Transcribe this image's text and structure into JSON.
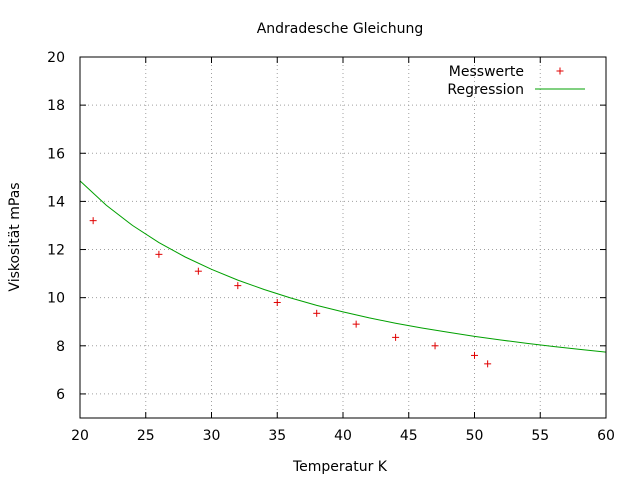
{
  "chart_data": {
    "type": "scatter",
    "title": "Andradesche Gleichung",
    "xlabel": "Temperatur K",
    "ylabel": "Viskosität mPas",
    "xlim": [
      20,
      60
    ],
    "ylim": [
      5,
      20
    ],
    "x_ticks": [
      20,
      25,
      30,
      35,
      40,
      45,
      50,
      55,
      60
    ],
    "y_ticks": [
      6,
      8,
      10,
      12,
      14,
      16,
      18,
      20
    ],
    "grid": true,
    "legend_position": "top-right",
    "series": [
      {
        "name": "Messwerte",
        "kind": "points",
        "marker": "plus",
        "color": "#e00000",
        "x": [
          21,
          26,
          29,
          32,
          35,
          38,
          41,
          44,
          47,
          50,
          51
        ],
        "y": [
          13.2,
          11.8,
          11.1,
          10.5,
          9.8,
          9.35,
          8.9,
          8.35,
          8.0,
          7.6,
          7.25
        ]
      },
      {
        "name": "Regression",
        "kind": "line",
        "color": "#00a000",
        "x": [
          20,
          22,
          24,
          26,
          28,
          30,
          32,
          34,
          36,
          38,
          40,
          42,
          44,
          46,
          48,
          50,
          52,
          54,
          56,
          58,
          60
        ],
        "y": [
          14.85,
          13.84,
          13.0,
          12.29,
          11.69,
          11.18,
          10.73,
          10.34,
          9.99,
          9.68,
          9.41,
          9.16,
          8.94,
          8.74,
          8.56,
          8.39,
          8.24,
          8.1,
          7.97,
          7.85,
          7.74
        ]
      }
    ]
  }
}
